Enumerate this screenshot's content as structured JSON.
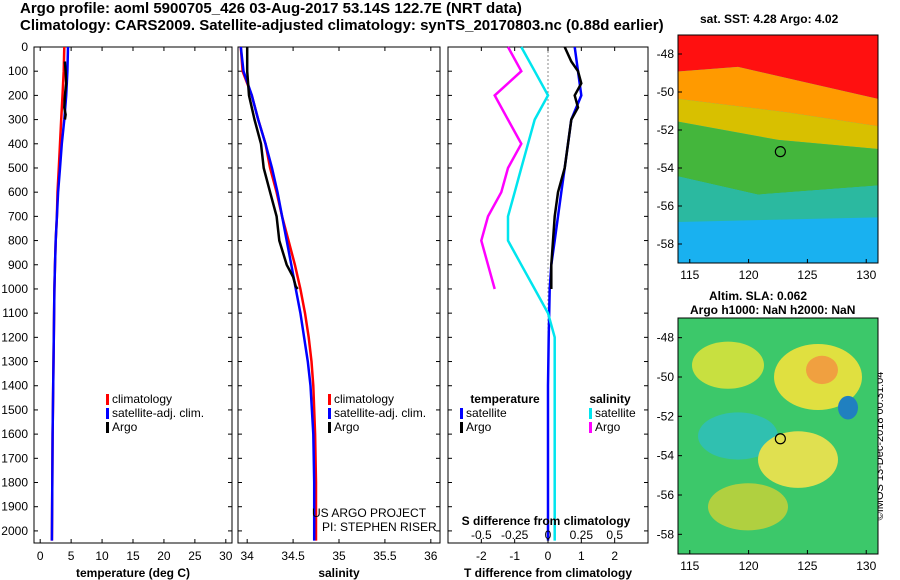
{
  "header": {
    "title_line1": "Argo profile: aoml 5900705_426 03-Aug-2017 53.14S 122.7E (NRT data)",
    "title_line2": "Climatology: CARS2009. Satellite-adjusted climatology: synTS_20170803.nc (0.88d earlier)"
  },
  "maps": {
    "sst_title": "sat. SST: 4.28 Argo: 4.02",
    "sla_title": "Altim. SLA: 0.062",
    "h_title": "Argo h1000: NaN h2000: NaN",
    "lon_ticks": [
      "115",
      "120",
      "125",
      "130"
    ],
    "lat_ticks": [
      "-48",
      "-50",
      "-52",
      "-54",
      "-56",
      "-58"
    ],
    "lon_range": [
      114,
      131
    ],
    "lat_range": [
      -47,
      -59
    ],
    "argo_position": {
      "lon": 122.7,
      "lat": -53.14
    }
  },
  "stamp": "©IMOS 13-Dec-2018 00:31:04",
  "credits": {
    "line1": "US ARGO PROJECT",
    "line2": "PI: STEPHEN RISER"
  },
  "colors": {
    "climatology": "#ff0000",
    "satellite": "#0000ff",
    "argo": "#000000",
    "sal_sat": "#00e5ee",
    "sal_argo": "#ff00ff"
  },
  "chart_data": [
    {
      "type": "line",
      "id": "temperature",
      "xlabel": "temperature (deg C)",
      "ylabel": "",
      "xlim": [
        -1,
        31
      ],
      "ylim": [
        0,
        2050
      ],
      "x_ticks": [
        0,
        5,
        10,
        15,
        20,
        25,
        30
      ],
      "x_tick_labels": [
        "0",
        "5",
        "10",
        "15",
        "20",
        "25",
        "30"
      ],
      "y_ticks": [
        0,
        100,
        200,
        300,
        400,
        500,
        600,
        700,
        800,
        900,
        1000,
        1100,
        1200,
        1300,
        1400,
        1500,
        1600,
        1700,
        1800,
        1900,
        2000
      ],
      "legend": [
        "climatology",
        "satellite-adj. clim.",
        "Argo"
      ],
      "series": [
        {
          "name": "climatology",
          "color": "#ff0000",
          "x": [
            3.9,
            3.8,
            3.6,
            3.4,
            3.2,
            3.0,
            2.8,
            2.7,
            2.5,
            2.4,
            2.3,
            2.2,
            2.1,
            2.0,
            1.95,
            1.9
          ],
          "y": [
            0,
            100,
            200,
            300,
            400,
            500,
            600,
            700,
            800,
            900,
            1000,
            1200,
            1400,
            1600,
            1800,
            2040
          ]
        },
        {
          "name": "satellite-adj. clim.",
          "color": "#0000ff",
          "x": [
            4.5,
            4.4,
            4.2,
            3.9,
            3.5,
            3.2,
            2.9,
            2.7,
            2.5,
            2.4,
            2.3,
            2.2,
            2.1,
            2.0,
            1.95,
            1.9
          ],
          "y": [
            0,
            100,
            200,
            300,
            400,
            500,
            600,
            700,
            800,
            900,
            1000,
            1200,
            1400,
            1600,
            1800,
            2040
          ]
        },
        {
          "name": "Argo",
          "color": "#000000",
          "x": [
            4.0,
            4.1,
            4.2,
            4.0,
            3.9,
            4.1,
            4.0
          ],
          "y": [
            60,
            100,
            150,
            200,
            250,
            280,
            300
          ]
        }
      ]
    },
    {
      "type": "line",
      "id": "salinity",
      "xlabel": "salinity",
      "xlim": [
        33.9,
        36.1
      ],
      "ylim": [
        0,
        2050
      ],
      "x_ticks": [
        34,
        34.5,
        35,
        35.5,
        36
      ],
      "x_tick_labels": [
        "34",
        "34.5",
        "35",
        "35.5",
        "36"
      ],
      "legend": [
        "climatology",
        "satellite-adj. clim.",
        "Argo"
      ],
      "series": [
        {
          "name": "climatology",
          "color": "#ff0000",
          "x": [
            33.93,
            33.95,
            34.05,
            34.12,
            34.2,
            34.25,
            34.32,
            34.38,
            34.45,
            34.52,
            34.58,
            34.63,
            34.67,
            34.7,
            34.72,
            34.74,
            34.75,
            34.75
          ],
          "y": [
            0,
            100,
            200,
            300,
            400,
            500,
            600,
            700,
            800,
            900,
            1000,
            1100,
            1200,
            1300,
            1400,
            1600,
            1800,
            2040
          ]
        },
        {
          "name": "satellite-adj. clim.",
          "color": "#0000ff",
          "x": [
            33.93,
            33.96,
            34.05,
            34.12,
            34.2,
            34.27,
            34.33,
            34.38,
            34.43,
            34.48,
            34.53,
            34.58,
            34.62,
            34.66,
            34.69,
            34.72,
            34.73,
            34.73
          ],
          "y": [
            0,
            100,
            200,
            300,
            400,
            500,
            600,
            700,
            800,
            900,
            1000,
            1100,
            1200,
            1300,
            1400,
            1600,
            1800,
            2040
          ]
        },
        {
          "name": "Argo",
          "color": "#000000",
          "x": [
            34.0,
            34.0,
            34.02,
            34.08,
            34.15,
            34.18,
            34.25,
            34.32,
            34.35,
            34.43,
            34.5,
            34.53,
            34.55
          ],
          "y": [
            0,
            100,
            200,
            300,
            400,
            500,
            600,
            700,
            800,
            900,
            950,
            990,
            1000
          ]
        }
      ]
    },
    {
      "type": "line",
      "id": "difference",
      "xlabel": "T difference from climatology",
      "xlabel_top": "S difference from climatology",
      "xlim": [
        -3,
        3
      ],
      "ylim": [
        0,
        2050
      ],
      "x_ticks": [
        -2,
        -1,
        0,
        1,
        2
      ],
      "x_tick_labels": [
        "-2",
        "-1",
        "0",
        "1",
        "2"
      ],
      "s_ticks": [
        -0.5,
        -0.25,
        0,
        0.25,
        0.5
      ],
      "s_tick_labels": [
        "-0.5",
        "-0.25",
        "0",
        "0.25",
        "0.5"
      ],
      "legend_temperature_title": "temperature",
      "legend_salinity_title": "salinity",
      "legend": [
        "satellite",
        "Argo",
        "satellite",
        "Argo"
      ],
      "series": [
        {
          "name": "T satellite",
          "color": "#0000ff",
          "x": [
            0.8,
            0.9,
            1.0,
            0.7,
            0.6,
            0.5,
            0.4,
            0.3,
            0.2,
            0.1,
            0.05,
            0.02,
            0.0,
            0.0,
            0.0,
            0.0
          ],
          "y": [
            0,
            100,
            200,
            300,
            400,
            500,
            600,
            700,
            800,
            900,
            1000,
            1200,
            1400,
            1600,
            1800,
            2040
          ]
        },
        {
          "name": "T Argo",
          "color": "#000000",
          "x": [
            0.5,
            0.7,
            0.9,
            1.0,
            0.8,
            0.9,
            0.7,
            0.6,
            0.5,
            0.3,
            0.2,
            0.15,
            0.1,
            0.1
          ],
          "y": [
            0,
            60,
            100,
            150,
            200,
            250,
            300,
            400,
            500,
            600,
            700,
            800,
            900,
            1000
          ]
        },
        {
          "name": "S satellite",
          "color": "#00e5ee",
          "x": [
            -0.2,
            -0.1,
            0.0,
            -0.1,
            -0.15,
            -0.2,
            -0.25,
            -0.3,
            -0.3,
            -0.2,
            -0.1,
            0.0,
            0.05,
            0.05,
            0.05
          ],
          "y": [
            0,
            100,
            200,
            300,
            400,
            500,
            600,
            700,
            800,
            900,
            1000,
            1100,
            1200,
            1600,
            2040
          ]
        },
        {
          "name": "S Argo",
          "color": "#ff00ff",
          "x": [
            -0.3,
            -0.2,
            -0.4,
            -0.3,
            -0.2,
            -0.3,
            -0.35,
            -0.45,
            -0.5,
            -0.45,
            -0.4
          ],
          "y": [
            0,
            100,
            200,
            300,
            400,
            500,
            600,
            700,
            800,
            900,
            1000
          ]
        }
      ]
    }
  ]
}
